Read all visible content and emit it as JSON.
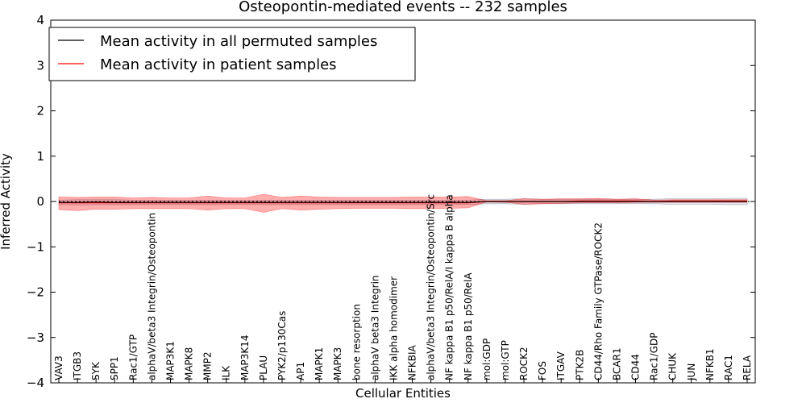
{
  "chart_data": {
    "type": "line",
    "title": "Osteopontin-mediated events -- 232 samples",
    "xlabel": "Cellular Entities",
    "ylabel": "Inferred Activity",
    "ylim": [
      -4,
      4
    ],
    "yticks": [
      -4,
      -3,
      -2,
      -1,
      0,
      1,
      2,
      3,
      4
    ],
    "ytick_labels": [
      "−4",
      "−3",
      "−2",
      "−1",
      "0",
      "1",
      "2",
      "3",
      "4"
    ],
    "legend_position": "top-left",
    "categories": [
      "VAV3",
      "ITGB3",
      "SYK",
      "SPP1",
      "Rac1/GTP",
      "alphaV/beta3 Integrin/Osteopontin",
      "MAP3K1",
      "MAPK8",
      "MMP2",
      "ILK",
      "MAP3K14",
      "PLAU",
      "PYK2/p130Cas",
      "AP1",
      "MAPK1",
      "MAPK3",
      "bone resorption",
      "alphaV beta3 Integrin",
      "IKK alpha homodimer",
      "NFKBIA",
      "alphaV/beta3 Integrin/Osteopontin/Src",
      "NF kappa B1 p50/RelA/I kappa B alpha",
      "NF kappa B1 p50/RelA",
      "mol:GDP",
      "mol:GTP",
      "ROCK2",
      "FOS",
      "ITGAV",
      "PTK2B",
      "CD44/Rho Family GTPase/ROCK2",
      "BCAR1",
      "CD44",
      "Rac1/GDP",
      "CHUK",
      "JUN",
      "NFKB1",
      "RAC1",
      "RELA"
    ],
    "series": [
      {
        "name": "Mean activity in all permuted samples",
        "color": "#000000",
        "values": [
          -0.02,
          -0.02,
          -0.01,
          -0.02,
          -0.02,
          -0.02,
          -0.02,
          -0.02,
          -0.02,
          -0.02,
          -0.02,
          -0.02,
          -0.02,
          -0.02,
          -0.02,
          -0.02,
          -0.02,
          -0.02,
          -0.02,
          -0.02,
          -0.02,
          -0.02,
          -0.02,
          0.0,
          0.0,
          0.0,
          0.0,
          0.0,
          0.0,
          0.0,
          0.0,
          0.0,
          0.0,
          0.0,
          0.0,
          0.0,
          0.0,
          0.0
        ],
        "band_upper": [
          0.03,
          0.04,
          0.04,
          0.04,
          0.03,
          0.03,
          0.03,
          0.03,
          0.03,
          0.03,
          0.03,
          0.03,
          0.03,
          0.03,
          0.03,
          0.03,
          0.03,
          0.03,
          0.03,
          0.03,
          0.03,
          0.03,
          0.03,
          0.05,
          0.05,
          0.06,
          0.05,
          0.05,
          0.05,
          0.05,
          0.05,
          0.05,
          0.05,
          0.06,
          0.06,
          0.06,
          0.07,
          0.07
        ],
        "band_lower": [
          -0.07,
          -0.08,
          -0.07,
          -0.07,
          -0.07,
          -0.07,
          -0.07,
          -0.07,
          -0.07,
          -0.07,
          -0.07,
          -0.07,
          -0.07,
          -0.07,
          -0.07,
          -0.07,
          -0.07,
          -0.07,
          -0.07,
          -0.07,
          -0.07,
          -0.07,
          -0.07,
          -0.05,
          -0.05,
          -0.06,
          -0.05,
          -0.05,
          -0.05,
          -0.05,
          -0.05,
          -0.05,
          -0.05,
          -0.06,
          -0.06,
          -0.06,
          -0.07,
          -0.07
        ]
      },
      {
        "name": "Mean activity in patient samples",
        "color": "#ff0000",
        "values": [
          -0.03,
          -0.03,
          -0.03,
          -0.03,
          -0.03,
          -0.03,
          -0.03,
          -0.03,
          -0.03,
          -0.03,
          -0.03,
          -0.03,
          -0.03,
          -0.03,
          -0.03,
          -0.03,
          -0.03,
          -0.03,
          -0.03,
          -0.03,
          -0.03,
          -0.03,
          -0.03,
          0.0,
          0.0,
          0.0,
          0.0,
          0.0,
          0.01,
          0.01,
          0.01,
          0.01,
          0.0,
          0.01,
          0.01,
          0.01,
          0.01,
          0.01
        ],
        "band_upper": [
          0.1,
          0.09,
          0.1,
          0.1,
          0.08,
          0.09,
          0.08,
          0.08,
          0.12,
          0.08,
          0.08,
          0.16,
          0.09,
          0.12,
          0.1,
          0.09,
          0.09,
          0.09,
          0.09,
          0.1,
          0.1,
          0.1,
          0.11,
          0.02,
          0.02,
          0.06,
          0.05,
          0.06,
          0.06,
          0.07,
          0.05,
          0.06,
          0.03,
          0.04,
          0.04,
          0.04,
          0.04,
          0.04
        ],
        "band_lower": [
          -0.18,
          -0.2,
          -0.17,
          -0.17,
          -0.16,
          -0.16,
          -0.16,
          -0.16,
          -0.19,
          -0.16,
          -0.16,
          -0.24,
          -0.16,
          -0.19,
          -0.17,
          -0.16,
          -0.15,
          -0.15,
          -0.15,
          -0.16,
          -0.16,
          -0.15,
          -0.14,
          -0.01,
          -0.02,
          -0.06,
          -0.05,
          -0.04,
          -0.03,
          -0.03,
          -0.03,
          -0.02,
          -0.02,
          -0.02,
          -0.02,
          -0.02,
          -0.02,
          -0.02
        ]
      }
    ]
  }
}
